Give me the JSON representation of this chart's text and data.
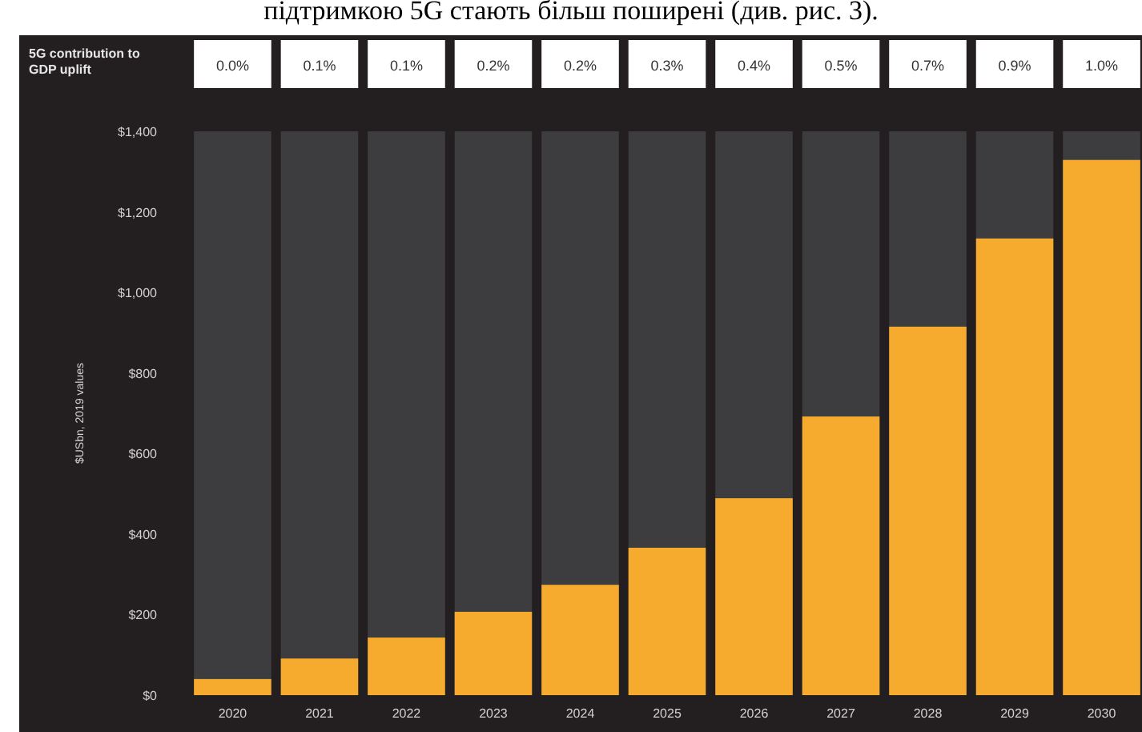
{
  "chart_data": {
    "type": "bar",
    "ylabel": "$USbn, 2019 values",
    "categories": [
      "2020",
      "2021",
      "2022",
      "2023",
      "2024",
      "2025",
      "2026",
      "2027",
      "2028",
      "2029",
      "2030"
    ],
    "values": [
      40,
      91,
      143,
      207,
      274,
      366,
      489,
      692,
      915,
      1134,
      1329
    ],
    "color": "#f7ab2e",
    "ylim": [
      0,
      1400
    ],
    "yticks": [
      {
        "value": 0,
        "label": "$0"
      },
      {
        "value": 200,
        "label": "$200"
      },
      {
        "value": 400,
        "label": "$400"
      },
      {
        "value": 600,
        "label": "$600"
      },
      {
        "value": 800,
        "label": "$800"
      },
      {
        "value": 1000,
        "label": "$1,000"
      },
      {
        "value": 1200,
        "label": "$1,200"
      },
      {
        "value": 1400,
        "label": "$1,400"
      }
    ],
    "grid": false,
    "annotations": [
      "підтримкою 5G стають більш поширені (див. рис. 3).",
      "5G contribution to GDP uplift",
      "0.0%",
      "0.1%",
      "0.1%",
      "0.2%",
      "0.2%",
      "0.3%",
      "0.4%",
      "0.5%",
      "0.7%",
      "0.9%",
      "1.0%"
    ]
  }
}
